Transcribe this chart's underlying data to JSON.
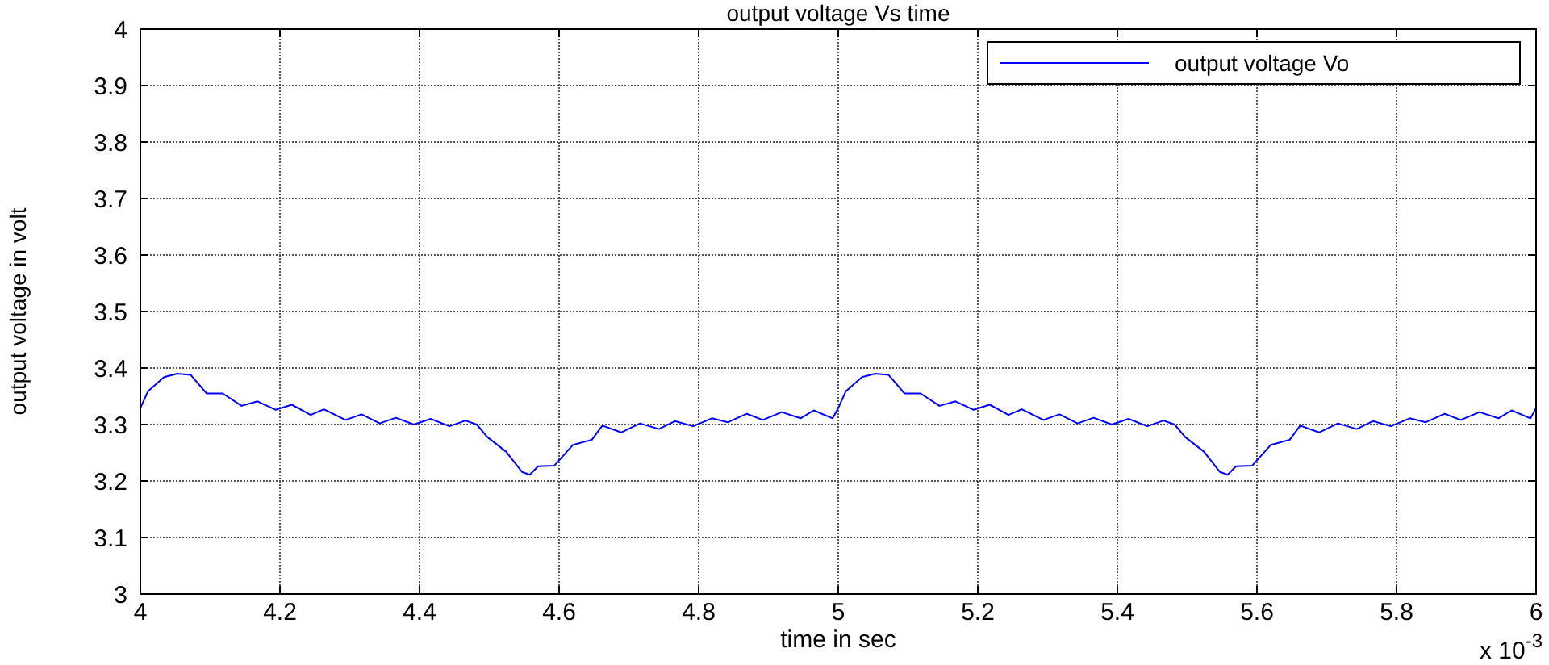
{
  "chart_data": {
    "type": "line",
    "title": "output voltage Vs time",
    "xlabel": "time in sec",
    "ylabel": "output voltage in volt",
    "annotations": [
      "x 10$^{-3}$"
    ],
    "xlim": [
      4,
      6
    ],
    "xticks": [
      4,
      4.2,
      4.4,
      4.6,
      4.8,
      5,
      5.2,
      5.4,
      5.6,
      5.8,
      6
    ],
    "ylim": [
      3,
      4
    ],
    "yticks": [
      3,
      3.1,
      3.2,
      3.3,
      3.4,
      3.5,
      3.6,
      3.7,
      3.8,
      3.9,
      4
    ],
    "grid": true,
    "legend": "top right",
    "marker": "none",
    "line_style": "solid",
    "series": [
      {
        "name": "output voltage Vo",
        "color": "#0000ff",
        "x": [
          4.0,
          4.011,
          4.034,
          4.053,
          4.072,
          4.095,
          4.118,
          4.145,
          4.168,
          4.194,
          4.217,
          4.244,
          4.263,
          4.294,
          4.317,
          4.343,
          4.366,
          4.392,
          4.416,
          4.443,
          4.466,
          4.482,
          4.497,
          4.524,
          4.547,
          4.558,
          4.57,
          4.593,
          4.62,
          4.647,
          4.662,
          4.689,
          4.716,
          4.743,
          4.766,
          4.792,
          4.819,
          4.842,
          4.869,
          4.892,
          4.919,
          4.946,
          4.965,
          4.992,
          5.0,
          5.011,
          5.034,
          5.053,
          5.072,
          5.095,
          5.118,
          5.145,
          5.168,
          5.194,
          5.217,
          5.244,
          5.263,
          5.294,
          5.317,
          5.343,
          5.366,
          5.392,
          5.416,
          5.443,
          5.466,
          5.482,
          5.497,
          5.524,
          5.547,
          5.558,
          5.57,
          5.593,
          5.62,
          5.647,
          5.662,
          5.689,
          5.716,
          5.743,
          5.766,
          5.792,
          5.819,
          5.842,
          5.869,
          5.892,
          5.919,
          5.946,
          5.965,
          5.992,
          6.0
        ],
        "values": [
          3.329,
          3.359,
          3.384,
          3.39,
          3.388,
          3.355,
          3.355,
          3.333,
          3.341,
          3.326,
          3.335,
          3.317,
          3.327,
          3.308,
          3.318,
          3.302,
          3.312,
          3.3,
          3.31,
          3.297,
          3.307,
          3.3,
          3.278,
          3.252,
          3.216,
          3.211,
          3.226,
          3.227,
          3.264,
          3.273,
          3.298,
          3.286,
          3.302,
          3.292,
          3.306,
          3.297,
          3.311,
          3.304,
          3.319,
          3.308,
          3.322,
          3.311,
          3.325,
          3.311,
          3.329,
          3.359,
          3.384,
          3.39,
          3.388,
          3.355,
          3.355,
          3.333,
          3.341,
          3.326,
          3.335,
          3.317,
          3.327,
          3.308,
          3.318,
          3.302,
          3.312,
          3.3,
          3.31,
          3.297,
          3.307,
          3.3,
          3.278,
          3.252,
          3.216,
          3.211,
          3.226,
          3.227,
          3.264,
          3.273,
          3.298,
          3.286,
          3.302,
          3.292,
          3.306,
          3.297,
          3.311,
          3.304,
          3.319,
          3.308,
          3.322,
          3.311,
          3.325,
          3.311,
          3.329
        ]
      }
    ]
  }
}
